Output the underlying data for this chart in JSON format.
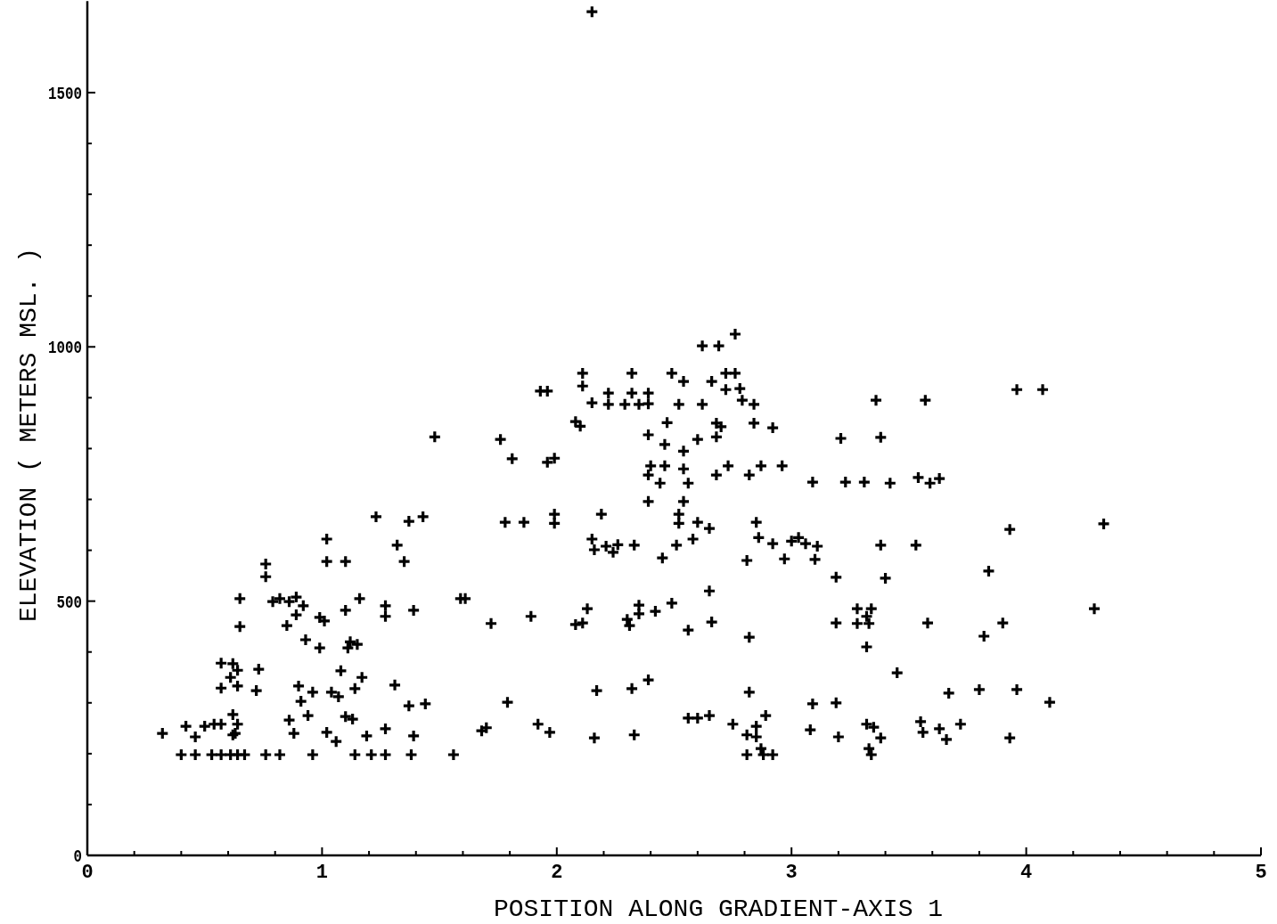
{
  "chart_data": {
    "type": "scatter",
    "xlabel": "POSITION ALONG GRADIENT-AXIS 1",
    "ylabel": "ELEVATION ( METERS MSL. )",
    "xlim": [
      0,
      5
    ],
    "ylim": [
      0,
      1680
    ],
    "xticks": [
      0,
      {
        "value": 0.2,
        "label": null
      },
      {
        "value": 0.4,
        "label": null
      },
      {
        "value": 0.6,
        "label": null
      },
      {
        "value": 0.8,
        "label": null
      },
      1,
      {
        "value": 1.2,
        "label": null
      },
      {
        "value": 1.4,
        "label": null
      },
      {
        "value": 1.6,
        "label": null
      },
      {
        "value": 1.8,
        "label": null
      },
      2,
      {
        "value": 2.2,
        "label": null
      },
      {
        "value": 2.4,
        "label": null
      },
      {
        "value": 2.6,
        "label": null
      },
      {
        "value": 2.8,
        "label": null
      },
      3,
      {
        "value": 3.2,
        "label": null
      },
      {
        "value": 3.4,
        "label": null
      },
      {
        "value": 3.6,
        "label": null
      },
      {
        "value": 3.8,
        "label": null
      },
      4,
      {
        "value": 4.2,
        "label": null
      },
      {
        "value": 4.4,
        "label": null
      },
      {
        "value": 4.6,
        "label": null
      },
      {
        "value": 4.8,
        "label": null
      },
      5
    ],
    "yticks": [
      0,
      {
        "value": 100,
        "label": null
      },
      {
        "value": 200,
        "label": null
      },
      {
        "value": 300,
        "label": null
      },
      {
        "value": 400,
        "label": null
      },
      500,
      {
        "value": 600,
        "label": null
      },
      {
        "value": 700,
        "label": null
      },
      {
        "value": 800,
        "label": null
      },
      {
        "value": 900,
        "label": null
      },
      1000,
      {
        "value": 1100,
        "label": null
      },
      {
        "value": 1200,
        "label": null
      },
      {
        "value": 1300,
        "label": null
      },
      {
        "value": 1400,
        "label": null
      },
      1500
    ],
    "marker": "cross",
    "series": [
      {
        "color": "#000000",
        "x": [
          0.32,
          0.42,
          0.46,
          0.5,
          0.54,
          0.57,
          0.62,
          0.64,
          0.62,
          0.63,
          0.4,
          0.46,
          0.53,
          0.57,
          0.61,
          0.64,
          0.67,
          0.76,
          0.82,
          0.96,
          1.14,
          1.21,
          1.27,
          1.38,
          1.56,
          2.81,
          2.88,
          2.92,
          3.34,
          0.86,
          0.88,
          0.94,
          1.02,
          1.06,
          1.1,
          1.13,
          1.19,
          1.27,
          1.39,
          0.57,
          0.64,
          0.72,
          0.57,
          0.62,
          0.64,
          0.61,
          0.73,
          0.9,
          0.91,
          0.96,
          1.04,
          1.07,
          1.14,
          1.17,
          1.08,
          1.31,
          1.37,
          1.44,
          0.65,
          0.65,
          0.76,
          0.76,
          0.79,
          0.82,
          0.86,
          0.89,
          0.92,
          0.89,
          0.85,
          0.93,
          0.99,
          0.99,
          1.01,
          1.1,
          1.16,
          1.12,
          1.11,
          1.15,
          1.27,
          1.27,
          1.39,
          1.02,
          1.02,
          1.1,
          1.23,
          1.37,
          1.43,
          1.32,
          1.35,
          1.59,
          1.48,
          2.62,
          2.69,
          2.76,
          2.11,
          2.11,
          2.32,
          2.49,
          2.54,
          2.66,
          2.72,
          2.76,
          2.72,
          2.78,
          2.79,
          2.84,
          1.93,
          1.96,
          2.15,
          2.22,
          2.22,
          2.29,
          2.32,
          2.35,
          2.39,
          2.39,
          2.52,
          2.62,
          2.08,
          2.1,
          2.47,
          2.68,
          2.7,
          2.68,
          2.84,
          2.92,
          1.76,
          1.81,
          1.96,
          1.99,
          2.39,
          2.46,
          2.6,
          2.54,
          2.4,
          2.46,
          2.39,
          2.44,
          2.54,
          2.56,
          2.68,
          2.73,
          2.82,
          2.87,
          2.96,
          2.39,
          2.54,
          2.52,
          2.52,
          2.6,
          2.65,
          2.85,
          1.78,
          1.86,
          1.99,
          1.99,
          2.19,
          2.15,
          2.16,
          2.21,
          2.26,
          2.24,
          2.33,
          2.45,
          2.51,
          2.58,
          2.81,
          2.86,
          2.92,
          2.97,
          3.0,
          1.61,
          1.72,
          1.89,
          2.13,
          2.08,
          2.11,
          2.3,
          2.31,
          2.35,
          2.35,
          2.42,
          2.49,
          2.56,
          2.66,
          2.65,
          2.82,
          1.68,
          1.7,
          1.79,
          1.92,
          1.97,
          2.16,
          2.17,
          2.32,
          2.39,
          2.33,
          2.56,
          2.6,
          2.65,
          2.82,
          2.75,
          2.81,
          2.85,
          2.85,
          2.87,
          2.89,
          3.96,
          4.07,
          3.36,
          3.57,
          3.21,
          3.38,
          3.09,
          3.23,
          3.31,
          3.42,
          3.54,
          3.59,
          3.63,
          4.33,
          3.93,
          3.03,
          3.06,
          3.11,
          3.1,
          3.38,
          3.53,
          3.19,
          3.4,
          3.84,
          4.29,
          3.19,
          3.28,
          3.34,
          3.32,
          3.28,
          3.33,
          3.32,
          3.58,
          3.9,
          3.82,
          3.45,
          3.67,
          3.8,
          3.96,
          4.1,
          3.09,
          3.19,
          3.08,
          3.2,
          3.32,
          3.35,
          3.38,
          3.33,
          3.55,
          3.56,
          3.63,
          3.66,
          3.72,
          3.93,
          2.15
        ],
        "values": [
          240,
          254,
          233,
          254,
          258,
          258,
          277,
          258,
          237,
          240,
          198,
          198,
          198,
          198,
          198,
          198,
          198,
          198,
          198,
          198,
          198,
          198,
          198,
          198,
          198,
          198,
          198,
          198,
          198,
          266,
          240,
          275,
          242,
          224,
          273,
          268,
          235,
          249,
          235,
          329,
          333,
          324,
          378,
          377,
          364,
          350,
          366,
          333,
          303,
          321,
          321,
          312,
          328,
          350,
          363,
          335,
          294,
          298,
          505,
          450,
          573,
          548,
          499,
          505,
          499,
          508,
          491,
          473,
          452,
          424,
          408,
          468,
          461,
          482,
          505,
          420,
          408,
          415,
          491,
          470,
          482,
          622,
          578,
          578,
          666,
          657,
          666,
          610,
          578,
          505,
          823,
          1002,
          1002,
          1025,
          948,
          923,
          948,
          948,
          932,
          932,
          948,
          948,
          916,
          918,
          895,
          887,
          913,
          913,
          890,
          909,
          887,
          887,
          909,
          887,
          909,
          888,
          887,
          887,
          853,
          844,
          851,
          850,
          843,
          823,
          850,
          841,
          818,
          780,
          773,
          781,
          827,
          808,
          818,
          795,
          766,
          766,
          748,
          732,
          760,
          732,
          748,
          766,
          748,
          766,
          766,
          696,
          696,
          671,
          653,
          655,
          643,
          655,
          655,
          655,
          671,
          653,
          671,
          622,
          601,
          608,
          611,
          596,
          610,
          585,
          610,
          622,
          580,
          625,
          613,
          583,
          618,
          505,
          456,
          470,
          485,
          454,
          457,
          464,
          452,
          492,
          475,
          480,
          496,
          443,
          459,
          520,
          429,
          245,
          251,
          301,
          258,
          242,
          231,
          324,
          328,
          345,
          237,
          270,
          270,
          275,
          321,
          258,
          237,
          254,
          233,
          210,
          275,
          916,
          916,
          895,
          895,
          820,
          822,
          734,
          734,
          734,
          732,
          743,
          732,
          741,
          652,
          641,
          625,
          613,
          608,
          582,
          610,
          610,
          547,
          545,
          559,
          485,
          457,
          485,
          485,
          470,
          456,
          456,
          410,
          457,
          457,
          431,
          359,
          319,
          326,
          326,
          301,
          298,
          300,
          247,
          233,
          258,
          252,
          231,
          210,
          263,
          242,
          249,
          228,
          258,
          231,
          1659
        ]
      }
    ]
  }
}
